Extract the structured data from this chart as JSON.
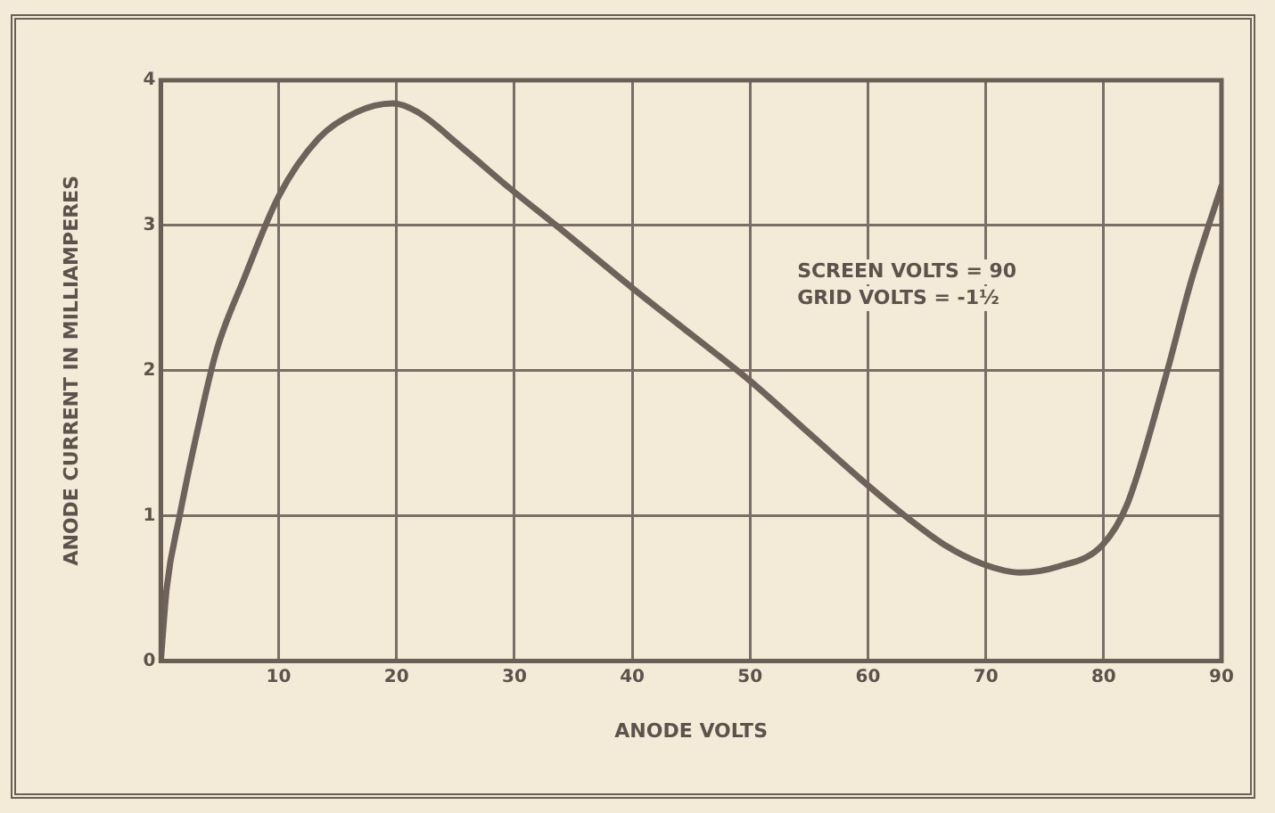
{
  "chart_data": {
    "type": "line",
    "xlabel": "ANODE VOLTS",
    "ylabel": "ANODE CURRENT IN MILLIAMPERES",
    "annotations": [
      "SCREEN VOLTS = 90",
      "GRID VOLTS = -1½"
    ],
    "x": [
      0,
      0.5,
      1.6,
      3.2,
      4.7,
      7.1,
      10,
      13.4,
      16.6,
      19.7,
      21.8,
      25.5,
      29.7,
      34,
      40,
      45,
      50,
      55,
      60,
      63.3,
      66.5,
      69.7,
      72.9,
      76.1,
      79.9,
      82,
      85.3,
      87.4,
      90
    ],
    "series": [
      {
        "color": "#6e625a",
        "values": [
          0,
          0.5,
          1,
          1.62,
          2.13,
          2.64,
          3.2,
          3.6,
          3.78,
          3.84,
          3.78,
          3.54,
          3.25,
          2.97,
          2.57,
          2.25,
          1.93,
          1.57,
          1.21,
          0.99,
          0.8,
          0.67,
          0.61,
          0.65,
          0.8,
          1.08,
          1.97,
          2.61,
          3.27
        ]
      }
    ],
    "xlim": [
      0,
      90
    ],
    "xticks": [
      {
        "value": 0,
        "label": null
      },
      10,
      20,
      30,
      40,
      50,
      60,
      70,
      80,
      90
    ],
    "ylim": [
      0,
      4
    ],
    "yticks": [
      0,
      1,
      2,
      3,
      4
    ],
    "grid": true,
    "legend": false,
    "marker": "none",
    "line_style": "solid"
  }
}
